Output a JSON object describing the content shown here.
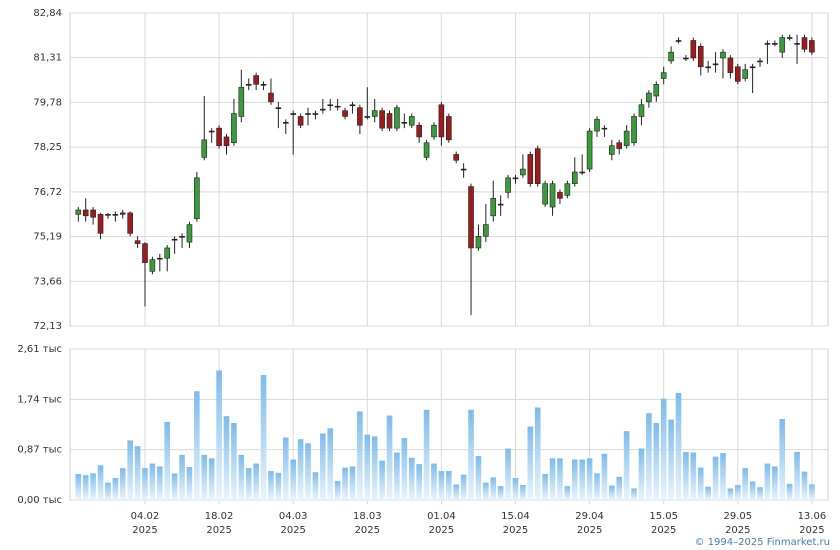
{
  "chart_data": {
    "type": "candlestick",
    "categories": [
      null,
      null,
      null,
      null,
      null,
      null,
      null,
      null,
      null,
      [
        "04.02",
        "2025"
      ],
      null,
      null,
      null,
      null,
      null,
      null,
      null,
      null,
      null,
      [
        "18.02",
        "2025"
      ],
      null,
      null,
      null,
      null,
      null,
      null,
      null,
      null,
      null,
      [
        "04.03",
        "2025"
      ],
      null,
      null,
      null,
      null,
      null,
      null,
      null,
      null,
      null,
      [
        "18.03",
        "2025"
      ],
      null,
      null,
      null,
      null,
      null,
      null,
      null,
      null,
      null,
      [
        "01.04",
        "2025"
      ],
      null,
      null,
      null,
      null,
      null,
      null,
      null,
      null,
      null,
      [
        "15.04",
        "2025"
      ],
      null,
      null,
      null,
      null,
      null,
      null,
      null,
      null,
      null,
      [
        "29.04",
        "2025"
      ],
      null,
      null,
      null,
      null,
      null,
      null,
      null,
      null,
      null,
      [
        "15.05",
        "2025"
      ],
      null,
      null,
      null,
      null,
      null,
      null,
      null,
      null,
      null,
      [
        "29.05",
        "2025"
      ],
      null,
      null,
      null,
      null,
      null,
      null,
      null,
      null,
      null,
      [
        "13.06",
        "2025"
      ]
    ],
    "open": [
      75.95,
      76.1,
      76.1,
      75.95,
      75.95,
      75.95,
      76.0,
      76.0,
      75.05,
      74.95,
      74.0,
      74.45,
      74.45,
      75.1,
      75.2,
      75.0,
      75.8,
      77.9,
      78.8,
      78.9,
      78.6,
      78.4,
      79.3,
      80.4,
      80.7,
      80.4,
      80.1,
      79.6,
      79.1,
      79.4,
      79.3,
      79.4,
      79.4,
      79.55,
      79.7,
      79.65,
      79.5,
      79.7,
      79.6,
      79.3,
      79.3,
      79.5,
      79.4,
      78.9,
      79.1,
      79.0,
      79.0,
      77.9,
      78.6,
      79.7,
      79.3,
      78.0,
      77.5,
      76.9,
      74.8,
      75.2,
      75.9,
      76.3,
      76.7,
      77.2,
      77.3,
      78.0,
      78.2,
      76.3,
      76.2,
      76.7,
      76.6,
      77.0,
      77.4,
      77.5,
      78.8,
      78.9,
      78.0,
      78.4,
      78.3,
      78.4,
      79.3,
      79.8,
      80.0,
      80.6,
      81.2,
      81.9,
      81.3,
      81.9,
      81.7,
      81.0,
      81.1,
      81.3,
      81.3,
      81.0,
      80.6,
      81.0,
      81.2,
      81.8,
      81.8,
      81.5,
      82.0,
      81.8,
      82.0,
      81.9
    ],
    "high": [
      76.2,
      76.5,
      76.2,
      76.0,
      76.0,
      76.05,
      76.1,
      76.05,
      75.2,
      75.0,
      74.5,
      74.6,
      74.9,
      75.2,
      75.3,
      75.7,
      77.4,
      80.0,
      78.9,
      79.0,
      78.7,
      79.9,
      80.9,
      80.6,
      80.8,
      80.5,
      80.6,
      79.8,
      79.2,
      79.5,
      79.4,
      79.6,
      79.5,
      79.9,
      79.9,
      79.9,
      79.6,
      79.8,
      79.7,
      80.3,
      79.9,
      79.6,
      79.5,
      79.7,
      79.4,
      79.4,
      79.1,
      78.5,
      79.1,
      79.8,
      79.4,
      78.1,
      77.7,
      77.0,
      75.6,
      76.3,
      77.1,
      76.6,
      77.3,
      77.3,
      78.0,
      78.1,
      78.3,
      77.1,
      77.1,
      76.8,
      77.1,
      77.9,
      78.0,
      78.9,
      79.3,
      79.0,
      78.5,
      78.5,
      79.0,
      79.4,
      79.9,
      80.2,
      80.5,
      81.0,
      81.7,
      82.0,
      81.4,
      82.0,
      81.8,
      81.2,
      81.5,
      81.6,
      81.4,
      81.1,
      81.1,
      81.1,
      81.3,
      81.9,
      81.9,
      82.1,
      82.1,
      82.1,
      82.1,
      82.0
    ],
    "low": [
      75.7,
      75.7,
      75.6,
      75.1,
      75.8,
      75.7,
      75.8,
      75.2,
      74.8,
      72.8,
      73.9,
      74.0,
      74.0,
      74.6,
      74.8,
      74.8,
      75.7,
      77.8,
      78.4,
      78.2,
      78.0,
      78.3,
      79.1,
      80.2,
      80.2,
      80.2,
      79.7,
      78.9,
      78.7,
      78.0,
      78.9,
      79.0,
      79.2,
      79.4,
      79.5,
      79.5,
      79.2,
      79.4,
      78.7,
      79.2,
      79.1,
      78.8,
      78.8,
      78.8,
      78.9,
      78.9,
      78.4,
      77.8,
      78.5,
      78.3,
      78.4,
      77.7,
      77.2,
      72.5,
      74.7,
      75.0,
      75.7,
      75.9,
      76.5,
      77.0,
      77.2,
      76.9,
      76.9,
      76.2,
      75.9,
      76.3,
      76.5,
      76.9,
      77.3,
      77.4,
      78.6,
      78.6,
      77.8,
      78.0,
      78.2,
      78.3,
      79.0,
      79.6,
      79.8,
      80.4,
      81.1,
      81.8,
      81.2,
      81.2,
      80.7,
      80.8,
      80.8,
      80.6,
      80.6,
      80.4,
      80.5,
      80.1,
      81.0,
      81.1,
      81.7,
      81.3,
      81.9,
      81.1,
      81.5,
      81.4
    ],
    "close": [
      76.1,
      75.9,
      75.85,
      75.3,
      75.95,
      75.95,
      75.95,
      75.3,
      74.95,
      74.3,
      74.4,
      74.45,
      74.8,
      75.1,
      75.2,
      75.6,
      77.2,
      78.5,
      78.8,
      78.3,
      78.3,
      79.4,
      80.3,
      80.4,
      80.4,
      80.4,
      79.8,
      79.6,
      79.1,
      79.4,
      79.0,
      79.4,
      79.4,
      79.55,
      79.7,
      79.65,
      79.3,
      79.7,
      79.0,
      79.3,
      79.5,
      78.9,
      78.9,
      79.6,
      79.1,
      79.3,
      78.6,
      78.4,
      79.0,
      78.6,
      78.5,
      77.8,
      77.5,
      74.8,
      75.2,
      75.6,
      76.5,
      76.3,
      77.2,
      77.2,
      77.5,
      77.0,
      77.0,
      77.0,
      77.0,
      76.5,
      77.0,
      77.4,
      77.4,
      78.8,
      79.2,
      78.9,
      78.3,
      78.2,
      78.8,
      79.3,
      79.7,
      80.1,
      80.4,
      80.8,
      81.5,
      81.9,
      81.3,
      81.3,
      81.0,
      81.0,
      81.1,
      81.5,
      80.8,
      80.5,
      80.9,
      81.0,
      81.2,
      81.8,
      81.8,
      82.0,
      82.0,
      81.8,
      81.6,
      81.5
    ],
    "volume": [
      0.45,
      0.43,
      0.46,
      0.6,
      0.3,
      0.38,
      0.55,
      1.03,
      0.93,
      0.55,
      0.63,
      0.58,
      1.35,
      0.46,
      0.78,
      0.57,
      1.88,
      0.78,
      0.72,
      2.24,
      1.45,
      1.33,
      0.78,
      0.55,
      0.63,
      2.16,
      0.5,
      0.47,
      1.08,
      0.7,
      1.05,
      0.98,
      0.48,
      1.15,
      1.24,
      0.33,
      0.56,
      0.58,
      1.53,
      1.13,
      1.1,
      0.68,
      1.46,
      0.82,
      1.07,
      0.73,
      0.62,
      1.56,
      0.63,
      0.5,
      0.5,
      0.27,
      0.44,
      1.56,
      0.76,
      0.3,
      0.39,
      0.24,
      0.89,
      0.38,
      0.26,
      1.27,
      1.6,
      0.45,
      0.72,
      0.72,
      0.24,
      0.7,
      0.7,
      0.72,
      0.46,
      0.8,
      0.25,
      0.4,
      1.19,
      0.2,
      0.89,
      1.5,
      1.33,
      1.75,
      1.39,
      1.85,
      0.83,
      0.82,
      0.56,
      0.23,
      0.75,
      0.81,
      0.2,
      0.26,
      0.55,
      0.32,
      0.22,
      0.63,
      0.58,
      1.4,
      0.28,
      0.83,
      0.49,
      0.27
    ],
    "ylim": [
      72.13,
      82.84
    ],
    "yticks": [
      {
        "value": 72.13,
        "label": "72,13"
      },
      {
        "value": 73.66,
        "label": "73,66"
      },
      {
        "value": 75.19,
        "label": "75,19"
      },
      {
        "value": 76.72,
        "label": "76,72"
      },
      {
        "value": 78.25,
        "label": "78,25"
      },
      {
        "value": 79.78,
        "label": "79,78"
      },
      {
        "value": 81.31,
        "label": "81,31"
      },
      {
        "value": 82.84,
        "label": "82,84"
      }
    ],
    "volume_ylim": [
      0,
      2.61
    ],
    "volume_yticks": [
      {
        "value": 0,
        "label": "0,00 тыс"
      },
      {
        "value": 0.87,
        "label": "0,87 тыс"
      },
      {
        "value": 1.74,
        "label": "1,74 тыс"
      },
      {
        "value": 2.61,
        "label": "2,61 тыс"
      }
    ],
    "up_color": "#3b9a3b",
    "down_color": "#9b1c1c",
    "volume_color": "#7dbbec",
    "grid": true
  },
  "footer": "© 1994–2025 Finmarket.ru"
}
